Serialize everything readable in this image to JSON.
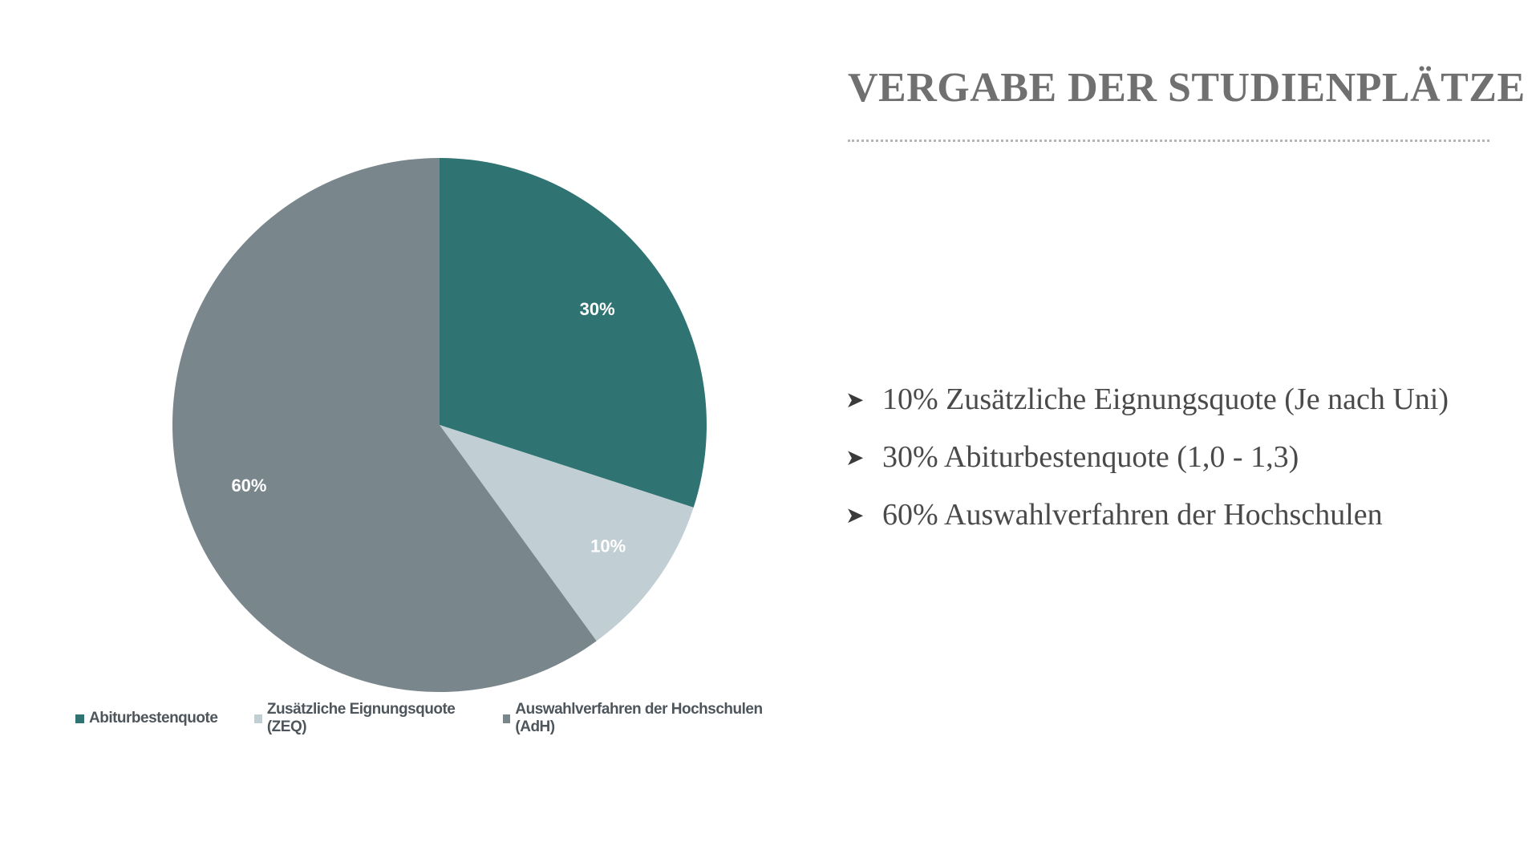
{
  "slide": {
    "title": "VERGABE DER STUDIENPLÄTZE",
    "bullets": [
      "10% Zusätzliche Eignungsquote (Je nach Uni)",
      "30% Abiturbestenquote (1,0 - 1,3)",
      "60% Auswahlverfahren der Hochschulen"
    ],
    "bullet_icon": "arrowhead-icon"
  },
  "chart_data": {
    "type": "pie",
    "categories": [
      "Abiturbestenquote",
      "Zusätzliche Eignungsquote (ZEQ)",
      "Auswahlverfahren der Hochschulen (AdH)"
    ],
    "values": [
      30,
      10,
      60
    ],
    "labels": [
      "30%",
      "10%",
      "60%"
    ],
    "colors": [
      "#2f7472",
      "#c1ced3",
      "#79868c"
    ],
    "start_angle_deg": 0,
    "direction": "clockwise",
    "legend": {
      "position": "bottom",
      "labels": [
        "Abiturbestenquote",
        "Zusätzliche Eignungsquote (ZEQ)",
        "Auswahlverfahren der Hochschulen (AdH)"
      ]
    }
  }
}
